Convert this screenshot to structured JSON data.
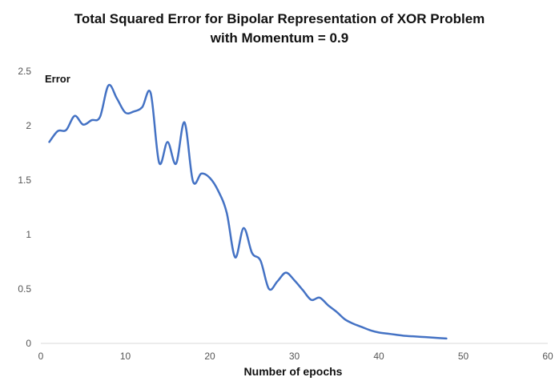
{
  "chart_data": {
    "type": "line",
    "title": [
      "Total Squared Error for Bipolar Representation of XOR Problem",
      "with Momentum = 0.9"
    ],
    "xlabel": "Number of epochs",
    "ylabel": "Error",
    "xlim": [
      0,
      60
    ],
    "ylim": [
      0,
      2.5
    ],
    "x_ticks": [
      "0",
      "10",
      "20",
      "30",
      "40",
      "50",
      "60"
    ],
    "y_ticks": [
      "0",
      "0.5",
      "1",
      "1.5",
      "2",
      "2.5"
    ],
    "grid": false,
    "legend": "none",
    "line_color": "#4472C4",
    "series": [
      {
        "x": [
          1,
          2,
          3,
          4,
          5,
          6,
          7,
          8,
          9,
          10,
          11,
          12,
          13,
          14,
          15,
          16,
          17,
          18,
          19,
          20,
          21,
          22,
          23,
          24,
          25,
          26,
          27,
          28,
          29,
          30,
          31,
          32,
          33,
          34,
          35,
          36,
          37,
          38,
          39,
          40,
          41,
          42,
          43,
          44,
          45,
          46,
          47,
          48
        ],
        "values": [
          1.85,
          1.95,
          1.96,
          2.09,
          2.01,
          2.05,
          2.08,
          2.37,
          2.25,
          2.12,
          2.13,
          2.17,
          2.3,
          1.66,
          1.85,
          1.65,
          2.03,
          1.49,
          1.56,
          1.52,
          1.4,
          1.2,
          0.79,
          1.06,
          0.83,
          0.76,
          0.5,
          0.57,
          0.65,
          0.58,
          0.49,
          0.4,
          0.42,
          0.35,
          0.29,
          0.22,
          0.18,
          0.15,
          0.12,
          0.1,
          0.09,
          0.08,
          0.07,
          0.065,
          0.06,
          0.055,
          0.05,
          0.045
        ]
      }
    ]
  }
}
